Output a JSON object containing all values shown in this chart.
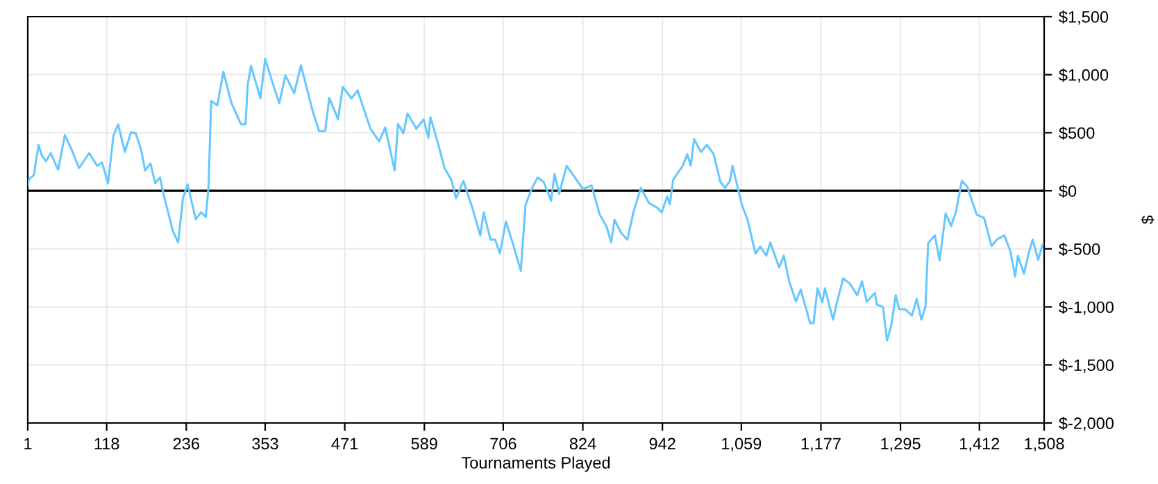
{
  "chart_data": {
    "type": "line",
    "xlabel": "Tournaments Played",
    "ylabel": "$",
    "x": [
      1,
      3,
      10,
      17,
      22,
      28,
      35,
      46,
      56,
      66,
      77,
      92,
      104,
      111,
      120,
      128,
      135,
      145,
      154,
      161,
      169,
      175,
      183,
      190,
      197,
      203,
      216,
      224,
      231,
      238,
      250,
      258,
      265,
      269,
      273,
      282,
      291,
      303,
      317,
      324,
      327,
      332,
      346,
      353,
      367,
      374,
      383,
      396,
      406,
      424,
      433,
      442,
      448,
      461,
      468,
      481,
      490,
      509,
      522,
      531,
      545,
      550,
      558,
      564,
      577,
      588,
      595,
      598,
      608,
      619,
      629,
      636,
      647,
      660,
      672,
      677,
      687,
      694,
      701,
      710,
      720,
      732,
      739,
      748,
      757,
      766,
      777,
      782,
      789,
      800,
      811,
      824,
      837,
      849,
      859,
      866,
      871,
      881,
      890,
      899,
      910,
      922,
      934,
      941,
      949,
      953,
      958,
      972,
      979,
      984,
      989,
      999,
      1008,
      1018,
      1028,
      1035,
      1042,
      1046,
      1060,
      1068,
      1080,
      1087,
      1096,
      1102,
      1115,
      1122,
      1130,
      1140,
      1147,
      1161,
      1166,
      1172,
      1179,
      1183,
      1195,
      1200,
      1210,
      1220,
      1231,
      1238,
      1245,
      1257,
      1260,
      1269,
      1275,
      1281,
      1288,
      1293,
      1302,
      1312,
      1319,
      1326,
      1332,
      1336,
      1346,
      1353,
      1362,
      1370,
      1377,
      1386,
      1394,
      1408,
      1419,
      1430,
      1438,
      1449,
      1458,
      1465,
      1469,
      1478,
      1485,
      1491,
      1499,
      1506
    ],
    "series": [
      {
        "color": "#66c8ff",
        "values": [
          50,
          100,
          135,
          395,
          300,
          255,
          325,
          180,
          480,
          355,
          195,
          325,
          215,
          245,
          65,
          475,
          570,
          335,
          505,
          495,
          355,
          175,
          235,
          65,
          115,
          -45,
          -345,
          -445,
          -65,
          55,
          -245,
          -185,
          -225,
          35,
          775,
          735,
          1025,
          755,
          575,
          575,
          910,
          1075,
          795,
          1135,
          875,
          755,
          995,
          840,
          1080,
          675,
          515,
          515,
          800,
          615,
          895,
          795,
          865,
          535,
          425,
          545,
          175,
          575,
          495,
          665,
          535,
          615,
          455,
          635,
          435,
          195,
          95,
          -65,
          85,
          -145,
          -385,
          -185,
          -420,
          -420,
          -540,
          -265,
          -450,
          -690,
          -125,
          15,
          115,
          75,
          -85,
          145,
          -25,
          215,
          125,
          15,
          45,
          -205,
          -305,
          -445,
          -250,
          -365,
          -420,
          -185,
          25,
          -105,
          -145,
          -185,
          -50,
          -115,
          95,
          215,
          315,
          215,
          445,
          335,
          395,
          315,
          75,
          25,
          85,
          215,
          -125,
          -245,
          -540,
          -480,
          -560,
          -445,
          -660,
          -560,
          -780,
          -955,
          -850,
          -1140,
          -1140,
          -840,
          -960,
          -840,
          -1110,
          -980,
          -755,
          -800,
          -900,
          -780,
          -955,
          -880,
          -980,
          -1000,
          -1290,
          -1170,
          -900,
          -1020,
          -1020,
          -1075,
          -930,
          -1110,
          -1000,
          -450,
          -385,
          -600,
          -195,
          -305,
          -185,
          85,
          35,
          -205,
          -235,
          -475,
          -420,
          -385,
          -520,
          -740,
          -560,
          -715,
          -540,
          -420,
          -595,
          -460
        ]
      }
    ],
    "xlim": [
      1,
      1508
    ],
    "xticks": [
      1,
      {
        "value": 118,
        "label": "118"
      },
      {
        "value": 236,
        "label": "236"
      },
      {
        "value": 353,
        "label": "353"
      },
      {
        "value": 471,
        "label": "471"
      },
      {
        "value": 589,
        "label": "589"
      },
      {
        "value": 706,
        "label": "706"
      },
      {
        "value": 824,
        "label": "824"
      },
      {
        "value": 942,
        "label": "942"
      },
      {
        "value": 1059,
        "label": "1,059"
      },
      {
        "value": 1177,
        "label": "1,177"
      },
      {
        "value": 1295,
        "label": "1,295"
      },
      {
        "value": 1412,
        "label": "1,412"
      },
      {
        "value": 1508,
        "label": "1,508"
      }
    ],
    "ylim": [
      -2000,
      1500
    ],
    "yticks": [
      {
        "value": 1500,
        "label": "$1,500"
      },
      {
        "value": 1000,
        "label": "$1,000"
      },
      {
        "value": 500,
        "label": "$500"
      },
      {
        "value": 0,
        "label": "$0"
      },
      {
        "value": -500,
        "label": "$-500"
      },
      {
        "value": -1000,
        "label": "$-1,000"
      },
      {
        "value": -1500,
        "label": "$-1,500"
      },
      {
        "value": -2000,
        "label": "$-2,000"
      }
    ],
    "ref_lines": [
      {
        "axis": "y",
        "value": 0,
        "color": "#000000"
      }
    ],
    "grid": true,
    "marker": "none",
    "line_style": "solid"
  }
}
